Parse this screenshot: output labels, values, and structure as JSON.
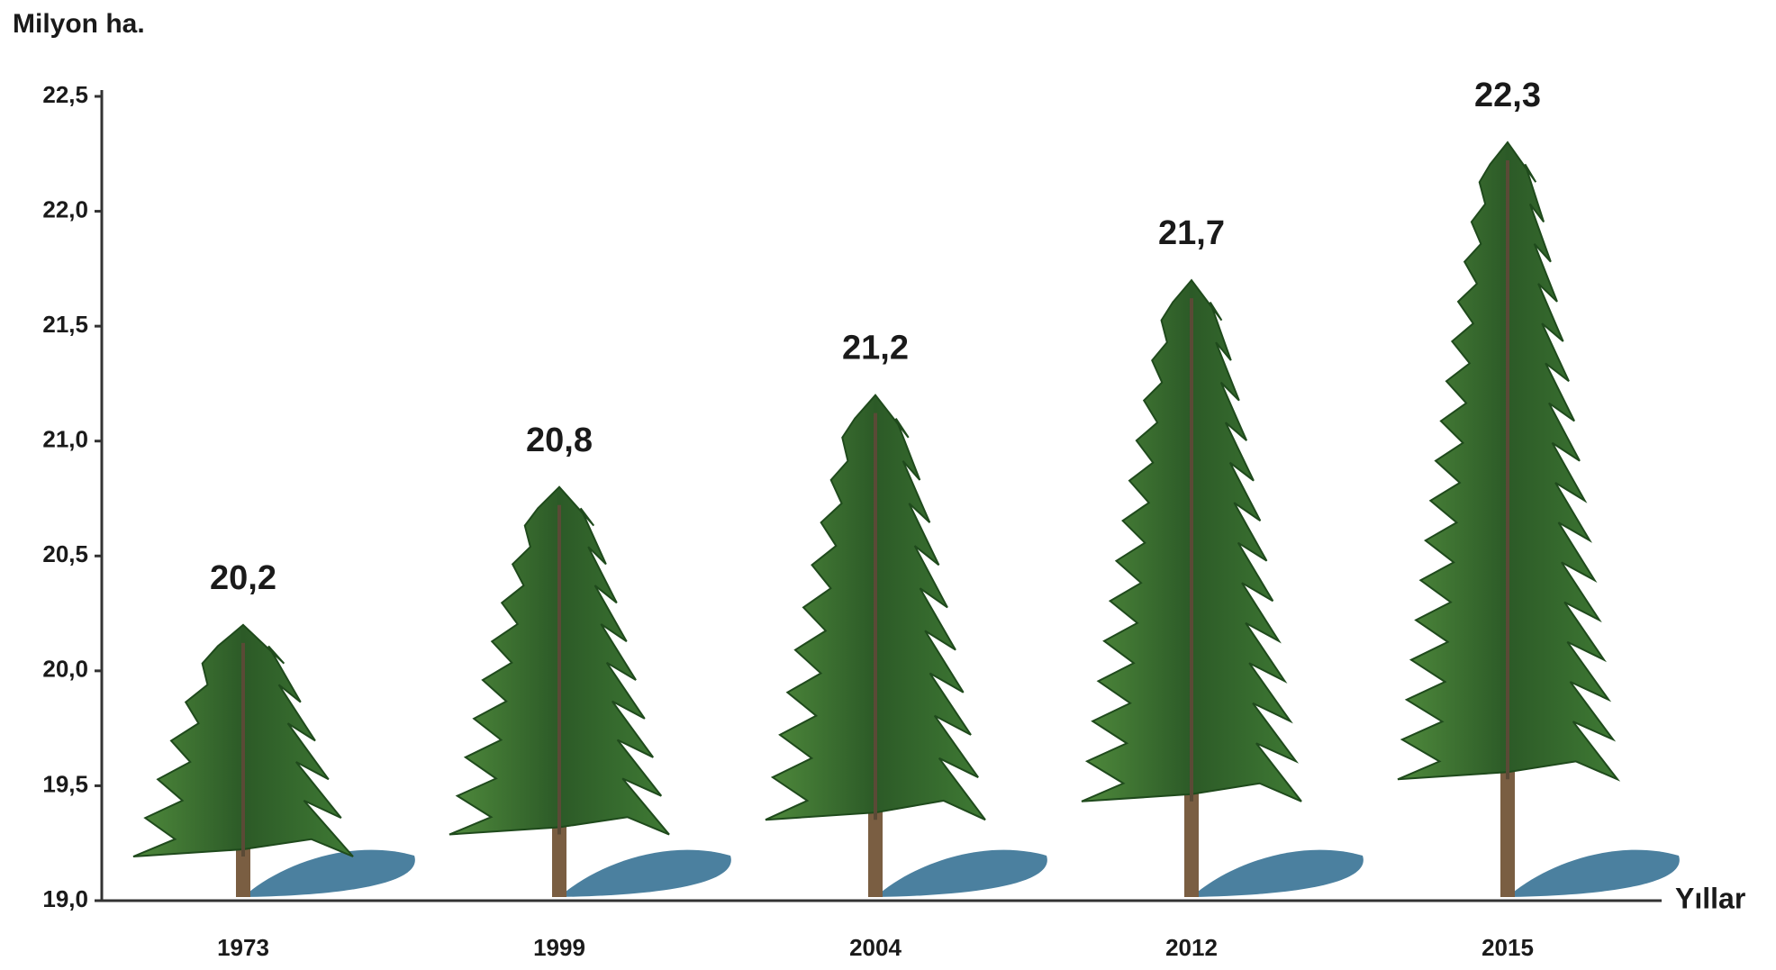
{
  "chart_data": {
    "type": "pictograph",
    "y_axis_label": "Milyon ha.",
    "x_axis_label": "Yıllar",
    "categories": [
      "1973",
      "1999",
      "2004",
      "2012",
      "2015"
    ],
    "values": [
      20.2,
      20.8,
      21.2,
      21.7,
      22.3
    ],
    "value_labels": [
      "20,2",
      "20,8",
      "21,2",
      "21,7",
      "22,3"
    ],
    "color": "#2f5f2b",
    "ylim": [
      19,
      22.5
    ],
    "yticks": [
      {
        "value": 19,
        "label": "19,0"
      },
      {
        "value": 19.5,
        "label": "19,5"
      },
      {
        "value": 20,
        "label": "20,0"
      },
      {
        "value": 20.5,
        "label": "20,5"
      },
      {
        "value": 21,
        "label": "21,0"
      },
      {
        "value": 21.5,
        "label": "21,5"
      },
      {
        "value": 22,
        "label": "22,0"
      },
      {
        "value": 22.5,
        "label": "22,5"
      }
    ],
    "grid": false
  }
}
